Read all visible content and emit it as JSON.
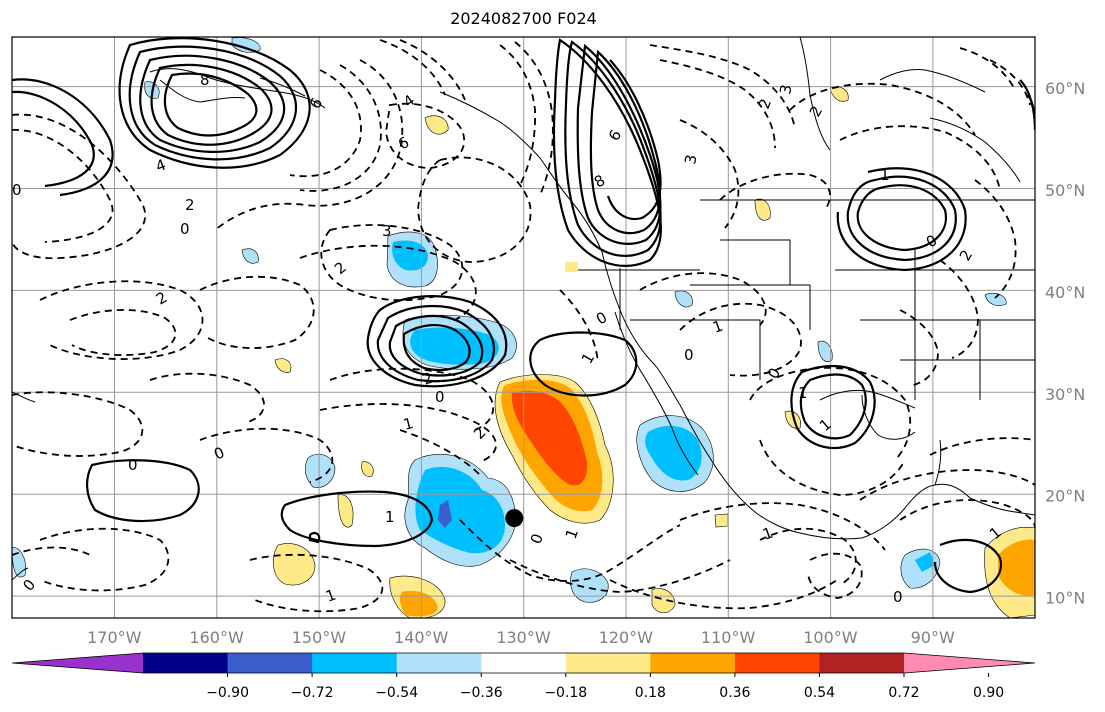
{
  "title": "2024082700 F024",
  "map": {
    "projection": "plate carree",
    "lon_range": [
      -180,
      -80
    ],
    "lat_range": [
      8,
      65
    ],
    "grid": true,
    "lon_ticks": [
      {
        "lon": -170,
        "label": "170°W"
      },
      {
        "lon": -160,
        "label": "160°W"
      },
      {
        "lon": -150,
        "label": "150°W"
      },
      {
        "lon": -140,
        "label": "140°W"
      },
      {
        "lon": -130,
        "label": "130°W"
      },
      {
        "lon": -120,
        "label": "120°W"
      },
      {
        "lon": -110,
        "label": "110°W"
      },
      {
        "lon": -100,
        "label": "100°W"
      },
      {
        "lon": -90,
        "label": "90°W"
      }
    ],
    "lat_ticks": [
      {
        "lat": 60,
        "label": "60°N"
      },
      {
        "lat": 50,
        "label": "50°N"
      },
      {
        "lat": 40,
        "label": "40°N"
      },
      {
        "lat": 30,
        "label": "30°N"
      },
      {
        "lat": 20,
        "label": "20°N"
      },
      {
        "lat": 10,
        "label": "10°N"
      }
    ],
    "marker": {
      "lon": -130.9,
      "lat": 17.8,
      "color": "#000000"
    },
    "contour_labels": [
      "8",
      "6",
      "4",
      "2",
      "0",
      "0",
      "2",
      "3",
      "2",
      "2",
      "0",
      "1",
      "0",
      "2",
      "6",
      "4",
      "0",
      "1",
      "1",
      "0",
      "1",
      "1",
      "0",
      "0",
      "1",
      "0",
      "1",
      "0",
      "8",
      "6",
      "3",
      "2",
      "3",
      "2",
      "1",
      "1",
      "0",
      "0",
      "2",
      "1",
      "1"
    ]
  },
  "colorbar": {
    "colors": [
      "#9932cc",
      "#00008b",
      "#3a5fcd",
      "#00bfff",
      "#afe1fa",
      "#ffffff",
      "#ffea8a",
      "#ffa500",
      "#ff4500",
      "#b22222",
      "#ff8bb0"
    ],
    "ticks": [
      "−0.90",
      "−0.72",
      "−0.54",
      "−0.36",
      "−0.18",
      "0.18",
      "0.36",
      "0.54",
      "0.72",
      "0.90"
    ]
  }
}
